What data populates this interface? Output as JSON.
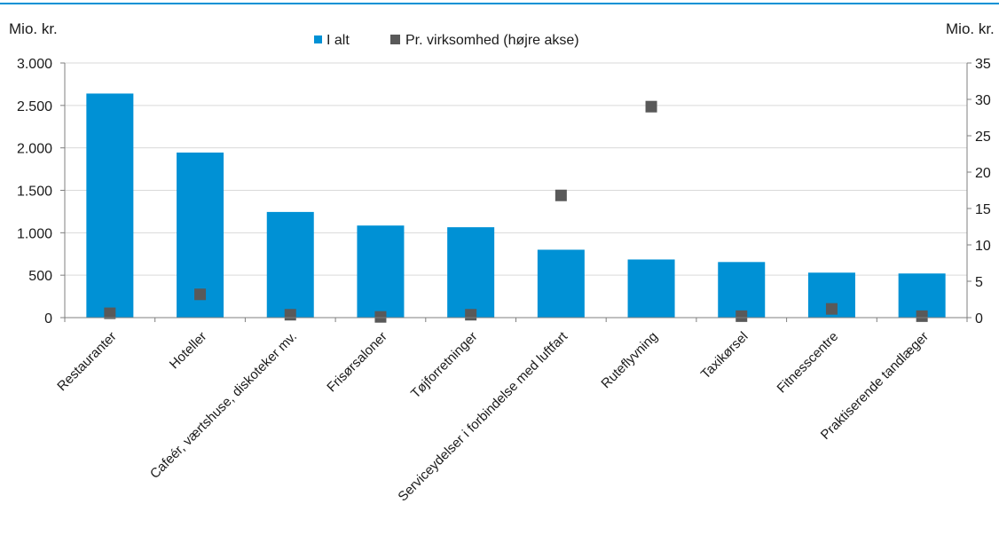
{
  "chart_data": {
    "type": "bar",
    "ylabel_left": "Mio. kr.",
    "ylabel_right": "Mio. kr.",
    "legend_position": "top",
    "grid": true,
    "categories": [
      "Restauranter",
      "Hoteller",
      "Cafeér, værtshuse, diskoteker mv.",
      "Frisørsaloner",
      "Tøjforretninger",
      "Serviceydelser i forbindelse med luftfart",
      "Ruteflyvning",
      "Taxikørsel",
      "Fitnesscentre",
      "Praktiserende tandlæger"
    ],
    "series": [
      {
        "name": "I alt",
        "type": "bar",
        "axis": "left",
        "color": "#0091d5",
        "values": [
          2640,
          1945,
          1245,
          1085,
          1065,
          800,
          685,
          655,
          530,
          520
        ]
      },
      {
        "name": "Pr. virksomhed (højre akse)",
        "type": "scatter",
        "axis": "right",
        "color": "#595959",
        "values": [
          0.6,
          3.2,
          0.4,
          0.1,
          0.4,
          16.8,
          29.0,
          0.2,
          1.2,
          0.2
        ]
      }
    ],
    "y_left": {
      "ylim": [
        0,
        3000
      ],
      "ticks": [
        0,
        500,
        1000,
        1500,
        2000,
        2500,
        3000
      ],
      "tick_labels": [
        "0",
        "500",
        "1.000",
        "1.500",
        "2.000",
        "2.500",
        "3.000"
      ]
    },
    "y_right": {
      "ylim": [
        0,
        35
      ],
      "ticks": [
        0,
        5,
        10,
        15,
        20,
        25,
        30,
        35
      ],
      "tick_labels": [
        "0",
        "5",
        "10",
        "15",
        "20",
        "25",
        "30",
        "35"
      ]
    }
  },
  "colors": {
    "top_rule": "#0091d5",
    "grid": "#d9d9d9",
    "axis": "#7f7f7f"
  }
}
